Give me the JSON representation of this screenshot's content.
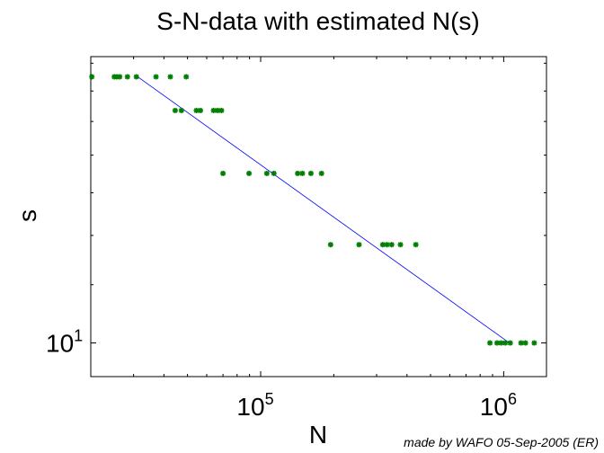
{
  "chart_data": {
    "type": "scatter",
    "title": "S-N-data with estimated N(s)",
    "xlabel": "N",
    "ylabel": "s",
    "xscale": "log",
    "yscale": "log",
    "xlim": [
      20000,
      1500000
    ],
    "ylim": [
      9.0,
      24.5
    ],
    "grid": false,
    "x_ticks": [
      {
        "value": 100000,
        "base": "10",
        "exp": "5"
      },
      {
        "value": 1000000,
        "base": "10",
        "exp": "6"
      }
    ],
    "y_ticks": [
      {
        "value": 10,
        "base": "10",
        "exp": "1"
      }
    ],
    "series": [
      {
        "marker_color": "#007f00",
        "points": [
          {
            "x": 20200,
            "y": 23.0
          },
          {
            "x": 25000,
            "y": 23.0
          },
          {
            "x": 25600,
            "y": 23.0
          },
          {
            "x": 26300,
            "y": 23.0
          },
          {
            "x": 28300,
            "y": 23.0
          },
          {
            "x": 30800,
            "y": 23.0
          },
          {
            "x": 37100,
            "y": 23.0
          },
          {
            "x": 42500,
            "y": 23.0
          },
          {
            "x": 49400,
            "y": 23.0
          },
          {
            "x": 44500,
            "y": 20.7
          },
          {
            "x": 47200,
            "y": 20.7
          },
          {
            "x": 54400,
            "y": 20.7
          },
          {
            "x": 56500,
            "y": 20.7
          },
          {
            "x": 64000,
            "y": 20.7
          },
          {
            "x": 66500,
            "y": 20.7
          },
          {
            "x": 69000,
            "y": 20.7
          },
          {
            "x": 70000,
            "y": 17.0
          },
          {
            "x": 89600,
            "y": 17.0
          },
          {
            "x": 106000,
            "y": 17.0
          },
          {
            "x": 113400,
            "y": 17.0
          },
          {
            "x": 142000,
            "y": 17.0
          },
          {
            "x": 148500,
            "y": 17.0
          },
          {
            "x": 161000,
            "y": 17.0
          },
          {
            "x": 178000,
            "y": 17.0
          },
          {
            "x": 194000,
            "y": 13.6
          },
          {
            "x": 254000,
            "y": 13.6
          },
          {
            "x": 318000,
            "y": 13.6
          },
          {
            "x": 331000,
            "y": 13.6
          },
          {
            "x": 346000,
            "y": 13.6
          },
          {
            "x": 376000,
            "y": 13.6
          },
          {
            "x": 435000,
            "y": 13.6
          },
          {
            "x": 878000,
            "y": 10.0
          },
          {
            "x": 939000,
            "y": 10.0
          },
          {
            "x": 976000,
            "y": 10.0
          },
          {
            "x": 1015000,
            "y": 10.0
          },
          {
            "x": 1064000,
            "y": 10.0
          },
          {
            "x": 1178000,
            "y": 10.0
          },
          {
            "x": 1229000,
            "y": 10.0
          },
          {
            "x": 1336000,
            "y": 10.0
          }
        ]
      },
      {
        "line_color": "#0000ff",
        "points": [
          {
            "x": 31200,
            "y": 23.0
          },
          {
            "x": 1056000,
            "y": 10.0
          }
        ]
      }
    ],
    "annotation": "made by WAFO 05-Sep-2005 (ER)"
  }
}
